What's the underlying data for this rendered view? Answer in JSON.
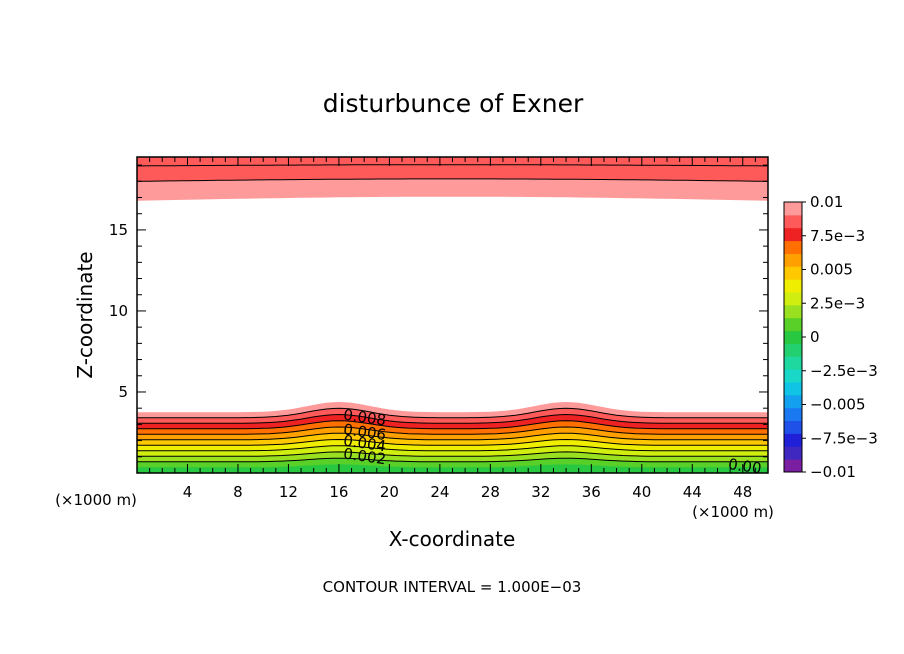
{
  "chart_data": {
    "type": "heatmap",
    "subtype": "filled-contour",
    "title": "disturbunce of Exner",
    "xlabel": "X-coordinate",
    "ylabel": "Z-coordinate",
    "x_unit_left": "(×1000 m)",
    "x_unit_right": "(×1000 m)",
    "xlim": [
      0,
      50
    ],
    "ylim": [
      0,
      19.5
    ],
    "x_ticks": [
      4,
      8,
      12,
      16,
      20,
      24,
      28,
      32,
      36,
      40,
      44,
      48
    ],
    "x_tick_labels": [
      "4",
      "8",
      "12",
      "16",
      "20",
      "24",
      "28",
      "32",
      "36",
      "40",
      "44",
      "48"
    ],
    "y_ticks": [
      5,
      10,
      15
    ],
    "y_tick_labels": [
      "5",
      "10",
      "15"
    ],
    "colorbar": {
      "levels": [
        -0.01,
        -0.009,
        -0.008,
        -0.007,
        -0.006,
        -0.005,
        -0.004,
        -0.003,
        -0.002,
        -0.001,
        0,
        0.001,
        0.002,
        0.003,
        0.004,
        0.005,
        0.006,
        0.007,
        0.008,
        0.009,
        0.01
      ],
      "colors": [
        "#7b1fa2",
        "#3f28c0",
        "#2020d8",
        "#1f50e8",
        "#1a78f0",
        "#13a0ee",
        "#10c4e6",
        "#1ad8c8",
        "#1ed8a0",
        "#22d070",
        "#28c840",
        "#58d028",
        "#98e020",
        "#d0ee10",
        "#f0ee00",
        "#ffc800",
        "#ffa000",
        "#ff7000",
        "#ee2222",
        "#ff5a5a",
        "#ff9a9a"
      ],
      "labels": [
        "0.01",
        "7.5e−3",
        "0.005",
        "2.5e−3",
        "0",
        "−2.5e−3",
        "−0.005",
        "−7.5e−3",
        "−0.01"
      ]
    },
    "contour_labels": [
      {
        "text": "0.008",
        "x": 16.3,
        "z": 3.3
      },
      {
        "text": "0.006",
        "x": 16.3,
        "z": 2.4
      },
      {
        "text": "0.004",
        "x": 16.3,
        "z": 1.7
      },
      {
        "text": "0.002",
        "x": 16.3,
        "z": 0.9
      },
      {
        "text": "0.00",
        "x": 46.8,
        "z": 0.25
      }
    ],
    "field_description": {
      "upper_layer_min_level": 0.009,
      "upper_layer_z_range": [
        16.8,
        19.5
      ],
      "lower_layer_top_z": 4.0,
      "lower_layer_peak_level": 0.01,
      "ridge_centers_x": [
        16,
        34
      ]
    },
    "contour_interval_text": "CONTOUR INTERVAL = 1.000E−03"
  }
}
